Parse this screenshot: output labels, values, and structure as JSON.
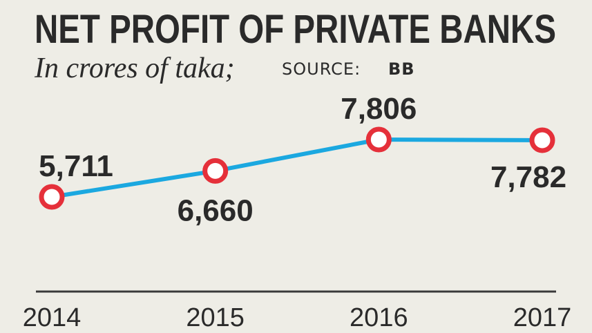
{
  "chart_data": {
    "type": "line",
    "title": "NET PROFIT OF PRIVATE BANKS",
    "subtitle": "In crores of taka;",
    "source_label": "SOURCE:",
    "source": "BB",
    "categories": [
      "2014",
      "2015",
      "2016",
      "2017"
    ],
    "series": [
      {
        "color": "#1ba8e0",
        "marker_color": "#e5303a",
        "values": [
          5711,
          6660,
          7806,
          7782
        ],
        "value_labels": [
          "5,711",
          "6,660",
          "7,806",
          "7,782"
        ]
      }
    ]
  }
}
